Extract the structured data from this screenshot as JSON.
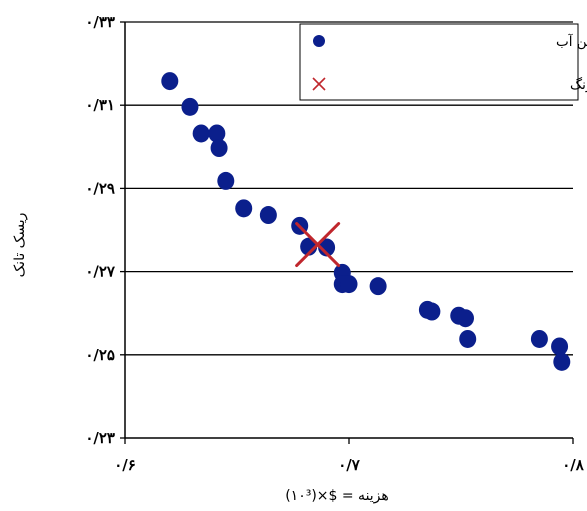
{
  "chart_data": {
    "type": "scatter",
    "title": "",
    "xlabel": "هزینه = $×(۱۰³)",
    "ylabel": "ریسک تانک",
    "xlim": [
      0.6,
      0.8
    ],
    "ylim": [
      0.23,
      0.33
    ],
    "x_ticks": [
      {
        "value": 0.6,
        "label": "۰/۶"
      },
      {
        "value": 0.7,
        "label": "۰/۷"
      },
      {
        "value": 0.8,
        "label": "۰/۸"
      }
    ],
    "y_ticks": [
      {
        "value": 0.23,
        "label": "۰/۲۳"
      },
      {
        "value": 0.25,
        "label": "۰/۲۵"
      },
      {
        "value": 0.27,
        "label": "۰/۲۷"
      },
      {
        "value": 0.29,
        "label": "۰/۲۹"
      },
      {
        "value": 0.31,
        "label": "۰/۳۱"
      },
      {
        "value": 0.33,
        "label": "۰/۳۳"
      }
    ],
    "grid": {
      "horizontal": true,
      "vertical": false
    },
    "legend_position": "top-right",
    "series": [
      {
        "name": "منحنی پارتو با قید فشار و سن آب",
        "marker": "circle",
        "color": "#0b1f8c",
        "points": [
          {
            "x": 0.62,
            "y": 0.3158
          },
          {
            "x": 0.629,
            "y": 0.3096
          },
          {
            "x": 0.634,
            "y": 0.3032
          },
          {
            "x": 0.641,
            "y": 0.3032
          },
          {
            "x": 0.642,
            "y": 0.2997
          },
          {
            "x": 0.645,
            "y": 0.2918
          },
          {
            "x": 0.653,
            "y": 0.2852
          },
          {
            "x": 0.664,
            "y": 0.2836
          },
          {
            "x": 0.678,
            "y": 0.281
          },
          {
            "x": 0.682,
            "y": 0.276
          },
          {
            "x": 0.69,
            "y": 0.2758
          },
          {
            "x": 0.697,
            "y": 0.2697
          },
          {
            "x": 0.697,
            "y": 0.267
          },
          {
            "x": 0.7,
            "y": 0.267
          },
          {
            "x": 0.713,
            "y": 0.2665
          },
          {
            "x": 0.735,
            "y": 0.2608
          },
          {
            "x": 0.737,
            "y": 0.2604
          },
          {
            "x": 0.749,
            "y": 0.2594
          },
          {
            "x": 0.752,
            "y": 0.2588
          },
          {
            "x": 0.753,
            "y": 0.2538
          },
          {
            "x": 0.785,
            "y": 0.2538
          },
          {
            "x": 0.794,
            "y": 0.252
          },
          {
            "x": 0.795,
            "y": 0.2483
          }
        ]
      },
      {
        "name": "بهترین جواب با استفاده از روش یونگ",
        "marker": "x",
        "color": "#c0272d",
        "points": [
          {
            "x": 0.686,
            "y": 0.2765
          }
        ]
      }
    ]
  }
}
